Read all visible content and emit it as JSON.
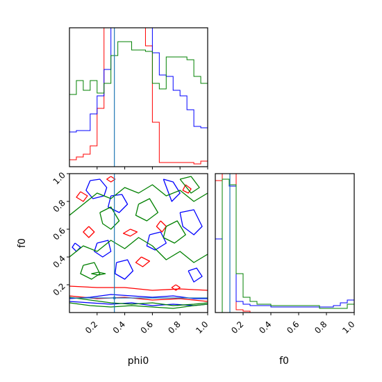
{
  "chart_data": {
    "type": "corner",
    "params": [
      "phi0",
      "f0"
    ],
    "axis_labels": {
      "x_left": "phi0",
      "x_right": "f0",
      "y_left": "f0"
    },
    "ranges": {
      "phi0": [
        0.0,
        1.0
      ],
      "f0": [
        0.0,
        1.0
      ]
    },
    "ticks": {
      "phi0_x": [
        "0.2",
        "0.4",
        "0.6",
        "0.8",
        "1.0"
      ],
      "f0_x": [
        "0.2",
        "0.4",
        "0.6",
        "0.8",
        "1.0"
      ],
      "f0_y": [
        "0.2",
        "0.4",
        "0.6",
        "0.8",
        "1.0"
      ]
    },
    "truth": {
      "phi0": 0.325,
      "f0": 0.105,
      "color": "#1f77b4"
    },
    "series": [
      {
        "color": "#ff0000"
      },
      {
        "color": "#0000ff"
      },
      {
        "color": "#008000"
      }
    ],
    "hist_phi0": {
      "bin_edges": [
        0.0,
        0.05,
        0.1,
        0.15,
        0.2,
        0.25,
        0.3,
        0.35,
        0.4,
        0.45,
        0.5,
        0.55,
        0.6,
        0.65,
        0.7,
        0.75,
        0.8,
        0.85,
        0.9,
        0.95,
        1.0
      ],
      "ymax": 1.0,
      "counts": [
        [
          0.05,
          0.07,
          0.09,
          0.15,
          0.42,
          1.05,
          1.05,
          1.05,
          1.05,
          1.05,
          1.05,
          0.87,
          0.32,
          0.03,
          0.03,
          0.03,
          0.03,
          0.03,
          0.02,
          0.04
        ],
        [
          0.25,
          0.26,
          0.26,
          0.38,
          0.51,
          0.7,
          1.05,
          1.05,
          1.05,
          1.05,
          1.05,
          1.05,
          0.82,
          0.66,
          0.65,
          0.55,
          0.51,
          0.41,
          0.29,
          0.28
        ],
        [
          0.52,
          0.62,
          0.55,
          0.62,
          0.53,
          0.6,
          0.8,
          0.9,
          0.9,
          0.84,
          0.84,
          0.83,
          0.6,
          0.56,
          0.79,
          0.79,
          0.79,
          0.77,
          0.65,
          0.6
        ]
      ]
    },
    "hist_f0": {
      "bin_edges": [
        0.0,
        0.05,
        0.1,
        0.15,
        0.2,
        0.25,
        0.3,
        0.35,
        0.4,
        0.45,
        0.5,
        0.55,
        0.6,
        0.65,
        0.7,
        0.75,
        0.8,
        0.85,
        0.9,
        0.95,
        1.0
      ],
      "ymax": 1.0,
      "counts": [
        [
          0.95,
          1.05,
          1.05,
          0.02,
          0.01,
          0.0,
          0.0,
          0.0,
          0.0,
          0.0,
          0.0,
          0.0,
          0.0,
          0.0,
          0.0,
          0.0,
          0.0,
          0.0,
          0.0,
          0.0
        ],
        [
          0.53,
          0.96,
          0.91,
          0.08,
          0.06,
          0.05,
          0.05,
          0.05,
          0.04,
          0.04,
          0.04,
          0.04,
          0.04,
          0.04,
          0.04,
          0.04,
          0.04,
          0.05,
          0.07,
          0.09
        ],
        [
          0.0,
          0.96,
          0.92,
          0.28,
          0.11,
          0.08,
          0.06,
          0.06,
          0.05,
          0.05,
          0.05,
          0.05,
          0.05,
          0.05,
          0.05,
          0.03,
          0.03,
          0.03,
          0.03,
          0.06
        ]
      ]
    },
    "contours_2d": [
      {
        "series": 0,
        "x": [
          0.0,
          0.2,
          0.4,
          0.6,
          0.8,
          1.0
        ],
        "y": [
          0.19,
          0.18,
          0.18,
          0.16,
          0.17,
          0.16
        ]
      },
      {
        "series": 0,
        "x": [
          0.0,
          0.2,
          0.4,
          0.6,
          0.8,
          1.0
        ],
        "y": [
          0.12,
          0.1,
          0.11,
          0.09,
          0.1,
          0.08
        ]
      },
      {
        "series": 1,
        "x": [
          0.0,
          0.15,
          0.3,
          0.45,
          0.6,
          0.75,
          0.9,
          1.0
        ],
        "y": [
          0.1,
          0.11,
          0.13,
          0.12,
          0.11,
          0.12,
          0.1,
          0.1
        ]
      },
      {
        "series": 1,
        "x": [
          0.0,
          0.15,
          0.3,
          0.45,
          0.6,
          0.75,
          0.9,
          1.0
        ],
        "y": [
          0.08,
          0.07,
          0.06,
          0.07,
          0.05,
          0.06,
          0.05,
          0.06
        ]
      },
      {
        "series": 2,
        "x": [
          0.0,
          0.15,
          0.3,
          0.45,
          0.6,
          0.75,
          0.9,
          1.0
        ],
        "y": [
          0.11,
          0.09,
          0.07,
          0.06,
          0.07,
          0.05,
          0.06,
          0.07
        ]
      },
      {
        "series": 2,
        "x": [
          0.0,
          0.15,
          0.3,
          0.45,
          0.6,
          0.75,
          0.9,
          1.0
        ],
        "y": [
          0.07,
          0.05,
          0.04,
          0.05,
          0.04,
          0.03,
          0.05,
          0.06
        ]
      },
      {
        "series": 0,
        "x": [
          0.08,
          0.13,
          0.1,
          0.05,
          0.08
        ],
        "y": [
          0.87,
          0.84,
          0.8,
          0.83,
          0.87
        ]
      },
      {
        "series": 0,
        "x": [
          0.66,
          0.7,
          0.67,
          0.63,
          0.66
        ],
        "y": [
          0.66,
          0.62,
          0.58,
          0.62,
          0.66
        ]
      },
      {
        "series": 0,
        "x": [
          0.44,
          0.49,
          0.44,
          0.39,
          0.44
        ],
        "y": [
          0.6,
          0.58,
          0.55,
          0.57,
          0.6
        ]
      },
      {
        "series": 0,
        "x": [
          0.14,
          0.18,
          0.14,
          0.1,
          0.14
        ],
        "y": [
          0.62,
          0.58,
          0.54,
          0.58,
          0.62
        ]
      },
      {
        "series": 0,
        "x": [
          0.52,
          0.58,
          0.53,
          0.48,
          0.52
        ],
        "y": [
          0.4,
          0.37,
          0.33,
          0.36,
          0.4
        ]
      },
      {
        "series": 0,
        "x": [
          0.77,
          0.8,
          0.77,
          0.74,
          0.77
        ],
        "y": [
          0.2,
          0.18,
          0.16,
          0.18,
          0.2
        ]
      },
      {
        "series": 0,
        "x": [
          0.84,
          0.88,
          0.86,
          0.82,
          0.84
        ],
        "y": [
          0.92,
          0.89,
          0.86,
          0.88,
          0.92
        ]
      },
      {
        "series": 0,
        "x": [
          0.3,
          0.33,
          0.3,
          0.27,
          0.3
        ],
        "y": [
          0.98,
          0.96,
          0.94,
          0.96,
          0.98
        ]
      },
      {
        "series": 1,
        "x": [
          0.15,
          0.22,
          0.27,
          0.25,
          0.17,
          0.12,
          0.15
        ],
        "y": [
          0.95,
          0.96,
          0.9,
          0.84,
          0.82,
          0.88,
          0.95
        ]
      },
      {
        "series": 1,
        "x": [
          0.3,
          0.38,
          0.42,
          0.36,
          0.28,
          0.3
        ],
        "y": [
          0.84,
          0.85,
          0.78,
          0.72,
          0.76,
          0.84
        ]
      },
      {
        "series": 1,
        "x": [
          0.68,
          0.75,
          0.8,
          0.74,
          0.68
        ],
        "y": [
          0.96,
          0.94,
          0.86,
          0.8,
          0.96
        ]
      },
      {
        "series": 1,
        "x": [
          0.58,
          0.66,
          0.7,
          0.62,
          0.56,
          0.58
        ],
        "y": [
          0.56,
          0.58,
          0.5,
          0.45,
          0.48,
          0.56
        ]
      },
      {
        "series": 1,
        "x": [
          0.2,
          0.28,
          0.3,
          0.24,
          0.18,
          0.2
        ],
        "y": [
          0.5,
          0.52,
          0.44,
          0.4,
          0.44,
          0.5
        ]
      },
      {
        "series": 1,
        "x": [
          0.34,
          0.42,
          0.46,
          0.4,
          0.33,
          0.34
        ],
        "y": [
          0.36,
          0.38,
          0.3,
          0.24,
          0.28,
          0.36
        ]
      },
      {
        "series": 1,
        "x": [
          0.8,
          0.9,
          0.96,
          0.9,
          0.82,
          0.8
        ],
        "y": [
          0.72,
          0.74,
          0.62,
          0.56,
          0.62,
          0.72
        ]
      },
      {
        "series": 1,
        "x": [
          0.04,
          0.08,
          0.05,
          0.02,
          0.04
        ],
        "y": [
          0.5,
          0.47,
          0.44,
          0.47,
          0.5
        ]
      },
      {
        "series": 1,
        "x": [
          0.86,
          0.92,
          0.96,
          0.9,
          0.86
        ],
        "y": [
          0.3,
          0.32,
          0.26,
          0.22,
          0.3
        ]
      },
      {
        "series": 2,
        "x": [
          0.0,
          0.1,
          0.2,
          0.3,
          0.4,
          0.5,
          0.6,
          0.7,
          0.8,
          0.9,
          1.0
        ],
        "y": [
          0.7,
          0.78,
          0.86,
          0.82,
          0.9,
          0.86,
          0.92,
          0.84,
          0.88,
          0.8,
          0.86
        ]
      },
      {
        "series": 2,
        "x": [
          0.0,
          0.1,
          0.2,
          0.3,
          0.4,
          0.5,
          0.6,
          0.7,
          0.8,
          0.9,
          1.0
        ],
        "y": [
          0.4,
          0.48,
          0.44,
          0.52,
          0.46,
          0.54,
          0.48,
          0.38,
          0.44,
          0.36,
          0.42
        ]
      },
      {
        "series": 2,
        "x": [
          0.22,
          0.3,
          0.36,
          0.3,
          0.24,
          0.22
        ],
        "y": [
          0.72,
          0.76,
          0.66,
          0.6,
          0.64,
          0.72
        ]
      },
      {
        "series": 2,
        "x": [
          0.5,
          0.58,
          0.64,
          0.56,
          0.48,
          0.5
        ],
        "y": [
          0.78,
          0.82,
          0.72,
          0.66,
          0.7,
          0.78
        ]
      },
      {
        "series": 2,
        "x": [
          0.7,
          0.78,
          0.84,
          0.76,
          0.68,
          0.7
        ],
        "y": [
          0.62,
          0.66,
          0.56,
          0.5,
          0.54,
          0.62
        ]
      },
      {
        "series": 2,
        "x": [
          0.1,
          0.18,
          0.22,
          0.16,
          0.08,
          0.1
        ],
        "y": [
          0.34,
          0.36,
          0.28,
          0.24,
          0.28,
          0.34
        ]
      },
      {
        "series": 2,
        "x": [
          0.8,
          0.88,
          0.94,
          0.88,
          0.8
        ],
        "y": [
          0.96,
          0.98,
          0.9,
          0.86,
          0.96
        ]
      },
      {
        "series": 2,
        "x": [
          0.21,
          0.26,
          0.21,
          0.16,
          0.21
        ],
        "y": [
          0.29,
          0.28,
          0.27,
          0.28,
          0.29
        ]
      }
    ]
  }
}
